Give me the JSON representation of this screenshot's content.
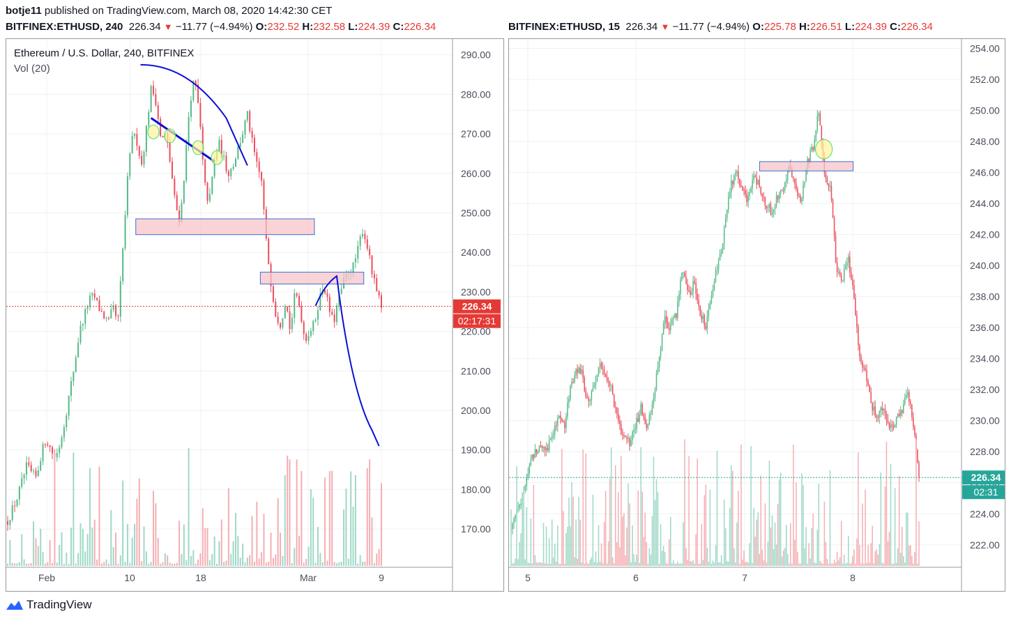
{
  "header": {
    "author": "botje11",
    "published_text": "published on TradingView.com, March 08, 2020 14:42:30 CET"
  },
  "left_ohlc": {
    "symbol": "BITFINEX:ETHUSD, 240",
    "price": "226.34",
    "arrow": "▼",
    "change": "−11.77 (−4.94%)",
    "o_label": "O:",
    "o": "232.52",
    "h_label": "H:",
    "h": "232.58",
    "l_label": "L:",
    "l": "224.39",
    "c_label": "C:",
    "c": "226.34"
  },
  "right_ohlc": {
    "symbol": "BITFINEX:ETHUSD, 15",
    "price": "226.34",
    "arrow": "▼",
    "change": "−11.77 (−4.94%)",
    "o_label": "O:",
    "o": "225.78",
    "h_label": "H:",
    "h": "226.51",
    "l_label": "L:",
    "l": "224.39",
    "c_label": "C:",
    "c": "226.34"
  },
  "left_legend": {
    "title": "Ethereum / U.S. Dollar, 240, BITFINEX",
    "vol": "Vol (20)"
  },
  "footer": {
    "brand": "TradingView",
    "logo_icon": "tradingview-logo-icon"
  },
  "colors": {
    "up": "#53b987",
    "down": "#eb4d5c",
    "vol_up": "#9fd8c6",
    "vol_down": "#f5aeb2",
    "drawing": "#0a10d6",
    "zone_fill": "#f7c4c8",
    "zone_border": "#3b6fd6",
    "last_price_left": "#e53935",
    "last_price_right": "#26a69a",
    "grid": "#eef0f3"
  },
  "chart_data": [
    {
      "type": "candlestick",
      "title": "Ethereum / U.S. Dollar, 240, BITFINEX",
      "indicator": "Vol (20)",
      "ylim": [
        160.5,
        294
      ],
      "y_ticks": [
        "290.00",
        "280.00",
        "270.00",
        "260.00",
        "250.00",
        "240.00",
        "230.00",
        "220.00",
        "210.00",
        "200.00",
        "190.00",
        "180.00",
        "170.00"
      ],
      "x_ticks": [
        "Feb",
        "10",
        "18",
        "Mar",
        "9"
      ],
      "last_price": "226.34",
      "countdown": "02:17:31",
      "close_series": [
        172,
        175,
        178,
        182,
        186,
        184,
        183,
        189,
        193,
        190,
        188,
        192,
        198,
        205,
        212,
        220,
        224,
        228,
        229,
        226,
        224,
        222,
        226,
        222,
        240,
        258,
        270,
        268,
        262,
        272,
        282,
        278,
        268,
        270,
        262,
        252,
        248,
        262,
        278,
        284,
        275,
        258,
        252,
        262,
        268,
        264,
        260,
        262,
        266,
        270,
        275,
        268,
        262,
        258,
        242,
        232,
        224,
        222,
        228,
        220,
        230,
        226,
        218,
        220,
        222,
        228,
        232,
        226,
        222,
        228,
        232,
        235,
        236,
        240,
        246,
        242,
        235,
        230,
        226
      ],
      "zones": [
        {
          "from_idx": 54.5,
          "to_idx": 130.5,
          "top": 248.5,
          "bottom": 244.5
        },
        {
          "from_idx": 107.5,
          "to_idx": 151.5,
          "top": 235,
          "bottom": 232
        }
      ],
      "trendline": {
        "from": [
          61,
          274
        ],
        "to": [
          88,
          263
        ]
      },
      "circles": [
        [
          62,
          270.5
        ],
        [
          69,
          269.5
        ],
        [
          81,
          266.5
        ],
        [
          89,
          264
        ]
      ],
      "arc_points": [
        [
          56.5,
          287.5
        ],
        [
          69,
          287.5
        ],
        [
          81,
          284
        ],
        [
          93,
          274
        ],
        [
          102,
          262
        ]
      ],
      "projection": [
        [
          131,
          226.5
        ],
        [
          135,
          232
        ],
        [
          140,
          234
        ],
        [
          146,
          205
        ],
        [
          155,
          195
        ],
        [
          158,
          191
        ]
      ]
    },
    {
      "type": "candlestick",
      "interval": "15",
      "ylim": [
        220.6,
        254.6
      ],
      "y_ticks": [
        "254.00",
        "252.00",
        "250.00",
        "248.00",
        "246.00",
        "244.00",
        "242.00",
        "240.00",
        "238.00",
        "236.00",
        "234.00",
        "232.00",
        "230.00",
        "228.00",
        "226.00",
        "224.00",
        "222.00"
      ],
      "x_ticks": [
        "5",
        "6",
        "7",
        "8"
      ],
      "last_price": "226.34",
      "countdown": "02:31",
      "close_series": [
        223,
        224.5,
        225,
        227,
        228,
        228.5,
        228.2,
        229,
        230.5,
        229.5,
        232,
        233.5,
        233,
        231,
        232.2,
        233.5,
        233,
        232,
        230,
        229,
        228.5,
        229.5,
        231,
        229.5,
        231,
        234,
        236.5,
        236,
        237,
        240,
        238,
        239,
        237,
        236,
        238.5,
        240,
        242,
        245,
        246,
        245,
        244,
        246,
        245,
        244,
        243.5,
        244.5,
        245,
        246.5,
        245,
        244,
        246.5,
        247.5,
        250,
        246,
        245,
        240,
        239,
        240.5,
        238,
        234,
        233,
        231,
        230,
        231,
        229.5,
        230,
        230.5,
        232,
        230,
        226.34
      ],
      "zones": [
        {
          "from_idx": 42.5,
          "to_idx": 58.5,
          "top": 246.7,
          "bottom": 246.1
        }
      ],
      "circles": [
        [
          53.5,
          247.5
        ]
      ]
    }
  ]
}
